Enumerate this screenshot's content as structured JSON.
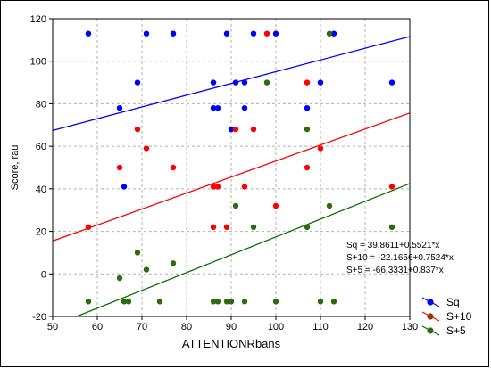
{
  "chart_data": {
    "type": "scatter",
    "xlabel": "ATTENTIONRbans",
    "ylabel": "Score, rau",
    "xlim": [
      50,
      130
    ],
    "ylim": [
      -20,
      120
    ],
    "xticks": [
      50,
      60,
      70,
      80,
      90,
      100,
      110,
      120,
      130
    ],
    "yticks": [
      -20,
      0,
      20,
      40,
      60,
      80,
      100,
      120
    ],
    "grid": true,
    "legend_position": "bottom-right",
    "equations": [
      "Sq = 39.8611+0.5521*x",
      "S+10 = -22.1656+0.7524*x",
      "S+5 = -66.3331+0.837*x"
    ],
    "series": [
      {
        "name": "Sq",
        "color": "#0000ff",
        "points": [
          [
            58,
            113
          ],
          [
            71,
            113
          ],
          [
            77,
            113
          ],
          [
            89,
            113
          ],
          [
            95,
            113
          ],
          [
            100,
            113
          ],
          [
            113,
            113
          ],
          [
            69,
            90
          ],
          [
            86,
            90
          ],
          [
            91,
            90
          ],
          [
            93,
            90
          ],
          [
            110,
            90
          ],
          [
            126,
            90
          ],
          [
            65,
            78
          ],
          [
            86,
            78
          ],
          [
            87,
            78
          ],
          [
            93,
            78
          ],
          [
            107,
            78
          ],
          [
            90,
            68
          ],
          [
            66,
            41
          ]
        ],
        "fit": {
          "intercept": 39.8611,
          "slope": 0.5521
        }
      },
      {
        "name": "S+10",
        "color": "#8b3a0f",
        "marker_colors_note": "red",
        "points": [
          [
            98,
            113
          ],
          [
            107,
            90
          ],
          [
            69,
            68
          ],
          [
            91,
            68
          ],
          [
            95,
            68
          ],
          [
            71,
            59
          ],
          [
            110,
            59
          ],
          [
            65,
            50
          ],
          [
            77,
            50
          ],
          [
            107,
            50
          ],
          [
            86,
            41
          ],
          [
            87,
            41
          ],
          [
            93,
            41
          ],
          [
            126,
            41
          ],
          [
            100,
            32
          ],
          [
            58,
            22
          ],
          [
            86,
            22
          ],
          [
            89,
            22
          ]
        ],
        "fit": {
          "intercept": -22.1656,
          "slope": 0.7524
        }
      },
      {
        "name": "S+5",
        "color": "#2e6b0f",
        "points": [
          [
            112,
            113
          ],
          [
            98,
            90
          ],
          [
            107,
            68
          ],
          [
            91,
            32
          ],
          [
            112,
            32
          ],
          [
            95,
            22
          ],
          [
            107,
            22
          ],
          [
            126,
            22
          ],
          [
            69,
            10
          ],
          [
            77,
            5
          ],
          [
            71,
            2
          ],
          [
            65,
            -2
          ],
          [
            58,
            -13
          ],
          [
            66,
            -13
          ],
          [
            67,
            -13
          ],
          [
            74,
            -13
          ],
          [
            86,
            -13
          ],
          [
            87,
            -13
          ],
          [
            89,
            -13
          ],
          [
            90,
            -13
          ],
          [
            93,
            -13
          ],
          [
            100,
            -13
          ],
          [
            110,
            -13
          ],
          [
            113,
            -13
          ]
        ],
        "fit": {
          "intercept": -66.3331,
          "slope": 0.837
        }
      }
    ]
  },
  "colors": {
    "sq_line": "#0000ff",
    "sq_marker": "#0000ff",
    "s10_line": "#ff0000",
    "s10_marker": "#ff0000",
    "s10_legend_marker": "#8b3a0f",
    "s5_line": "#007000",
    "s5_marker": "#2e6b0f",
    "grid": "#b0b0b0"
  }
}
